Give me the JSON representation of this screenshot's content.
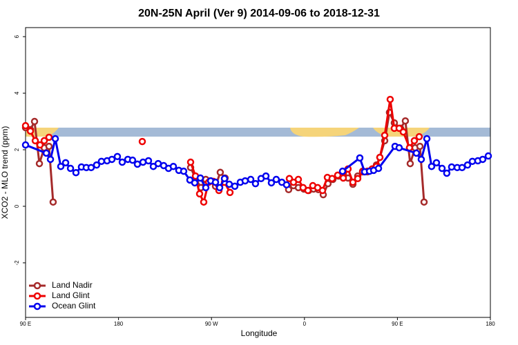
{
  "chart_data": {
    "type": "line",
    "title": "20N-25N April (Ver 9)   2014-09-06 to 2018-12-31",
    "xlabel": "Longitude",
    "ylabel": "XCO2 - MLO trend (ppm)",
    "xlim": [
      90,
      540
    ],
    "ylim": [
      -3.93,
      6.32
    ],
    "xticks": [
      {
        "value": 90,
        "label": "90 E"
      },
      180,
      {
        "value": 270,
        "label": "90 W"
      },
      {
        "value": 360,
        "label": "0"
      },
      {
        "value": 450,
        "label": "90 E"
      },
      {
        "value": 540,
        "label": "180"
      }
    ],
    "yticks": [
      -2,
      0,
      2,
      4,
      6
    ],
    "legend": "bottom-left",
    "series": [
      {
        "name": "Land Nadir",
        "color": "#a52a2a",
        "x": [
          90,
          94.7,
          98.7,
          103.4,
          108.1,
          112.7,
          116.7,
          null,
          249.8,
          255.1,
          259.8,
          264.5,
          269.2,
          273.9,
          278.5,
          283.2,
          null,
          344.7,
          349.4,
          354.1,
          359.4,
          364.1,
          368.8,
          373.5,
          378.2,
          382.8,
          387.5,
          392.9,
          397.6,
          402.2,
          406.9,
          411.6,
          416.3,
          421.0,
          425.6,
          429.7,
          433.0,
          437.7,
          442.3,
          447.0,
          453.0,
          457.7,
          462.4,
          467.1,
          471.8,
          475.8
        ],
        "values": [
          2.78,
          2.71,
          3.0,
          1.51,
          2.07,
          2.12,
          0.15,
          null,
          1.37,
          0.95,
          0.66,
          0.95,
          0.9,
          0.71,
          1.2,
          1.0,
          null,
          0.59,
          0.73,
          0.66,
          0.61,
          0.56,
          0.61,
          0.59,
          0.41,
          0.8,
          0.95,
          1.07,
          1.12,
          1.0,
          0.78,
          1.07,
          1.24,
          1.22,
          1.32,
          1.46,
          1.73,
          2.32,
          3.32,
          2.95,
          2.76,
          3.02,
          1.51,
          2.07,
          2.12,
          0.15
        ]
      },
      {
        "name": "Land Glint",
        "color": "#ee0000",
        "x": [
          90,
          94.7,
          99.4,
          104.0,
          108.1,
          112.7,
          null,
          203.0,
          null,
          249.8,
          254.5,
          258.5,
          262.5,
          267.2,
          271.9,
          277.2,
          282.6,
          287.9,
          null,
          345.4,
          349.4,
          354.1,
          358.7,
          363.4,
          368.1,
          372.8,
          377.5,
          382.2,
          386.8,
          392.2,
          397.6,
          402.2,
          406.9,
          411.6,
          416.3,
          421.0,
          425.6,
          429.7,
          433.0,
          437.7,
          443.0,
          447.0,
          451.7,
          455.7,
          461.7,
          466.4,
          471.1
        ],
        "values": [
          2.85,
          2.66,
          2.32,
          2.17,
          2.32,
          2.44,
          null,
          2.29,
          null,
          1.56,
          1.07,
          0.44,
          0.15,
          0.85,
          0.88,
          0.56,
          0.85,
          0.49,
          null,
          0.98,
          0.85,
          0.95,
          0.66,
          0.56,
          0.73,
          0.66,
          0.56,
          1.02,
          0.98,
          1.1,
          1.0,
          1.32,
          0.85,
          0.98,
          1.22,
          1.24,
          1.32,
          1.41,
          1.73,
          2.51,
          3.78,
          2.76,
          2.76,
          2.63,
          2.07,
          2.32,
          2.46
        ]
      },
      {
        "name": "Ocean Glint",
        "color": "#0000ee",
        "x": [
          90,
          110.1,
          114.1,
          118.8,
          124.1,
          128.8,
          133.5,
          138.8,
          144.1,
          148.8,
          153.5,
          158.8,
          163.5,
          168.9,
          173.6,
          178.9,
          183.6,
          189.0,
          193.6,
          198.3,
          203.7,
          209.0,
          213.7,
          218.4,
          223.7,
          228.4,
          233.1,
          238.4,
          243.1,
          249.1,
          253.8,
          259.2,
          264.5,
          269.2,
          273.9,
          277.9,
          282.6,
          287.2,
          292.6,
          297.9,
          302.6,
          308.0,
          312.6,
          318.0,
          322.7,
          328.0,
          332.7,
          338.1,
          342.7,
          null,
          396.9,
          413.6,
          418.3,
          423.0,
          427.0,
          431.7,
          447.7,
          451.7,
          468.4,
          473.1,
          478.5,
          483.1,
          487.8,
          493.2,
          497.8,
          502.5,
          507.9,
          512.6,
          517.9,
          522.6,
          527.9,
          532.6,
          538.0
        ],
        "values": [
          2.17,
          1.88,
          1.66,
          2.39,
          1.41,
          1.54,
          1.34,
          1.19,
          1.39,
          1.37,
          1.37,
          1.46,
          1.59,
          1.61,
          1.66,
          1.76,
          1.56,
          1.66,
          1.63,
          1.49,
          1.56,
          1.61,
          1.41,
          1.51,
          1.44,
          1.34,
          1.41,
          1.27,
          1.24,
          0.93,
          0.83,
          1.0,
          0.66,
          0.9,
          0.85,
          0.66,
          0.98,
          0.78,
          0.71,
          0.85,
          0.9,
          0.95,
          0.8,
          0.98,
          1.07,
          0.83,
          0.95,
          0.85,
          0.76,
          null,
          1.24,
          1.71,
          1.22,
          1.24,
          1.27,
          1.34,
          2.12,
          2.07,
          1.88,
          1.66,
          2.39,
          1.41,
          1.54,
          1.34,
          1.17,
          1.39,
          1.37,
          1.37,
          1.46,
          1.59,
          1.61,
          1.66,
          1.78
        ]
      }
    ]
  }
}
